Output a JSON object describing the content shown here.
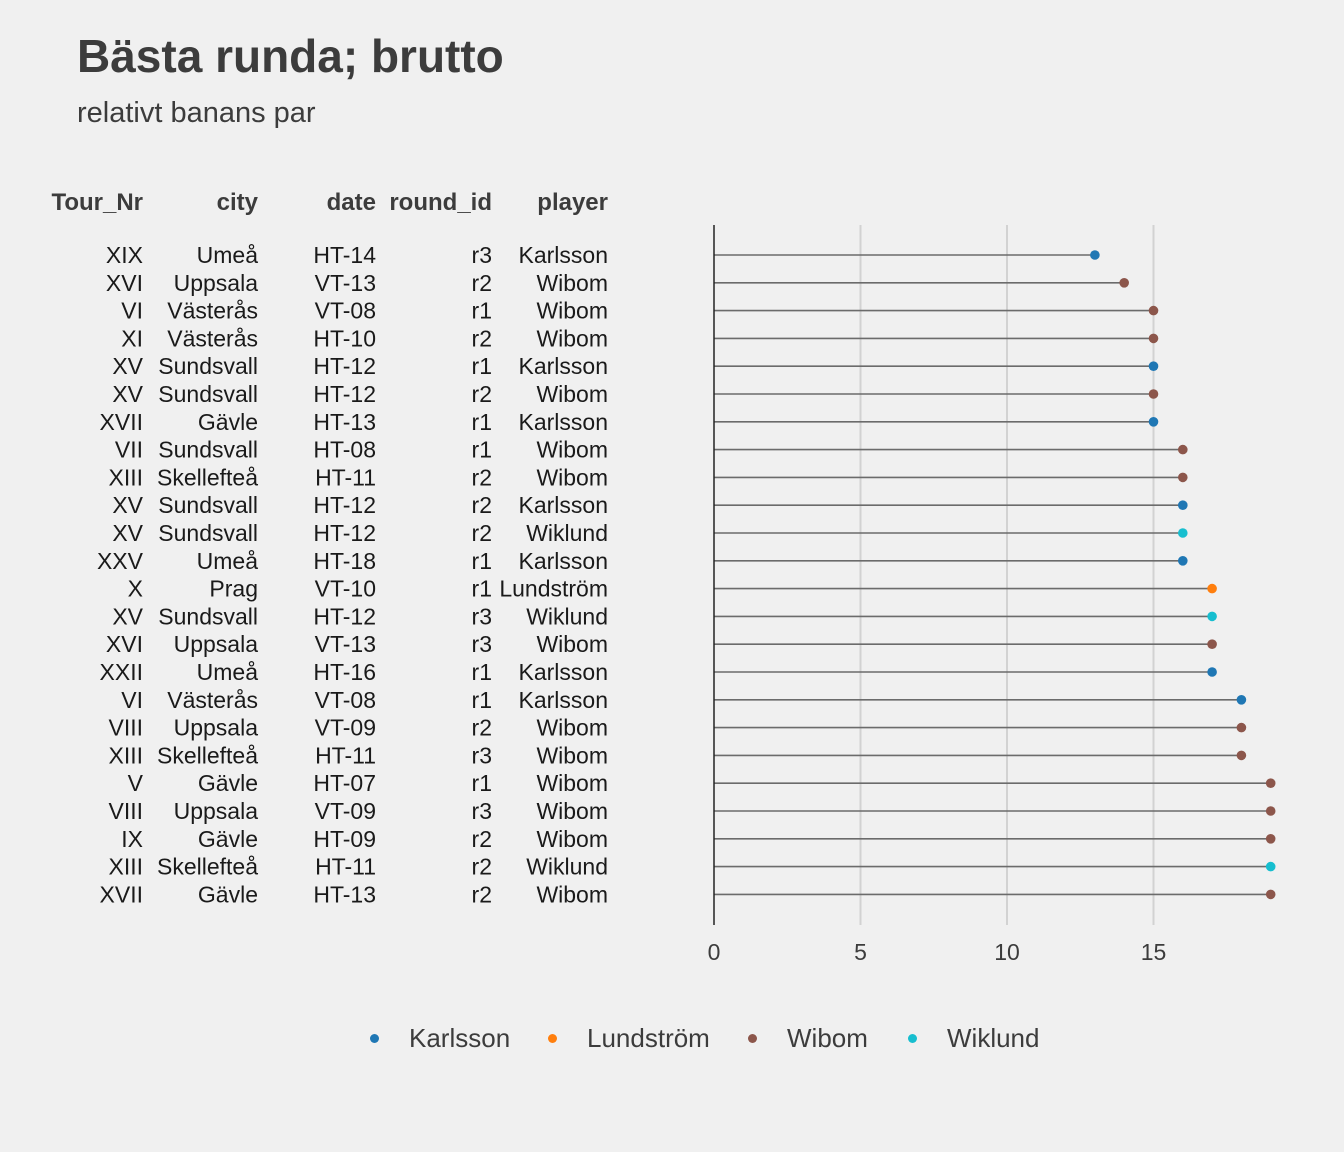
{
  "title": "Bästa runda; brutto",
  "subtitle": "relativt banans par",
  "table": {
    "headers": [
      "Tour_Nr",
      "city",
      "date",
      "round_id",
      "player"
    ],
    "rows": [
      [
        "XIX",
        "Umeå",
        "HT-14",
        "r3",
        "Karlsson"
      ],
      [
        "XVI",
        "Uppsala",
        "VT-13",
        "r2",
        "Wibom"
      ],
      [
        "VI",
        "Västerås",
        "VT-08",
        "r1",
        "Wibom"
      ],
      [
        "XI",
        "Västerås",
        "HT-10",
        "r2",
        "Wibom"
      ],
      [
        "XV",
        "Sundsvall",
        "HT-12",
        "r1",
        "Karlsson"
      ],
      [
        "XV",
        "Sundsvall",
        "HT-12",
        "r2",
        "Wibom"
      ],
      [
        "XVII",
        "Gävle",
        "HT-13",
        "r1",
        "Karlsson"
      ],
      [
        "VII",
        "Sundsvall",
        "HT-08",
        "r1",
        "Wibom"
      ],
      [
        "XIII",
        "Skellefteå",
        "HT-11",
        "r2",
        "Wibom"
      ],
      [
        "XV",
        "Sundsvall",
        "HT-12",
        "r2",
        "Karlsson"
      ],
      [
        "XV",
        "Sundsvall",
        "HT-12",
        "r2",
        "Wiklund"
      ],
      [
        "XXV",
        "Umeå",
        "HT-18",
        "r1",
        "Karlsson"
      ],
      [
        "X",
        "Prag",
        "VT-10",
        "r1",
        "Lundström"
      ],
      [
        "XV",
        "Sundsvall",
        "HT-12",
        "r3",
        "Wiklund"
      ],
      [
        "XVI",
        "Uppsala",
        "VT-13",
        "r3",
        "Wibom"
      ],
      [
        "XXII",
        "Umeå",
        "HT-16",
        "r1",
        "Karlsson"
      ],
      [
        "VI",
        "Västerås",
        "VT-08",
        "r1",
        "Karlsson"
      ],
      [
        "VIII",
        "Uppsala",
        "VT-09",
        "r2",
        "Wibom"
      ],
      [
        "XIII",
        "Skellefteå",
        "HT-11",
        "r3",
        "Wibom"
      ],
      [
        "V",
        "Gävle",
        "HT-07",
        "r1",
        "Wibom"
      ],
      [
        "VIII",
        "Uppsala",
        "VT-09",
        "r3",
        "Wibom"
      ],
      [
        "IX",
        "Gävle",
        "HT-09",
        "r2",
        "Wibom"
      ],
      [
        "XIII",
        "Skellefteå",
        "HT-11",
        "r2",
        "Wiklund"
      ],
      [
        "XVII",
        "Gävle",
        "HT-13",
        "r2",
        "Wibom"
      ]
    ]
  },
  "chart_data": {
    "type": "lollipop",
    "title": "Bästa runda; brutto",
    "subtitle": "relativt banans par",
    "xlim": [
      0,
      19
    ],
    "xticks": [
      0,
      5,
      10,
      15
    ],
    "grid": true,
    "legend_position": "bottom",
    "values": [
      13,
      14,
      15,
      15,
      15,
      15,
      15,
      16,
      16,
      16,
      16,
      16,
      17,
      17,
      17,
      17,
      18,
      18,
      18,
      19,
      19,
      19,
      19,
      19
    ],
    "players": [
      "Karlsson",
      "Wibom",
      "Wibom",
      "Wibom",
      "Karlsson",
      "Wibom",
      "Karlsson",
      "Wibom",
      "Wibom",
      "Karlsson",
      "Wiklund",
      "Karlsson",
      "Lundström",
      "Wiklund",
      "Wibom",
      "Karlsson",
      "Karlsson",
      "Wibom",
      "Wibom",
      "Wibom",
      "Wibom",
      "Wibom",
      "Wiklund",
      "Wibom"
    ],
    "legend": [
      {
        "name": "Karlsson",
        "color": "#1f77b4"
      },
      {
        "name": "Lundström",
        "color": "#ff7f0e"
      },
      {
        "name": "Wibom",
        "color": "#8c564b"
      },
      {
        "name": "Wiklund",
        "color": "#17becf"
      }
    ]
  }
}
